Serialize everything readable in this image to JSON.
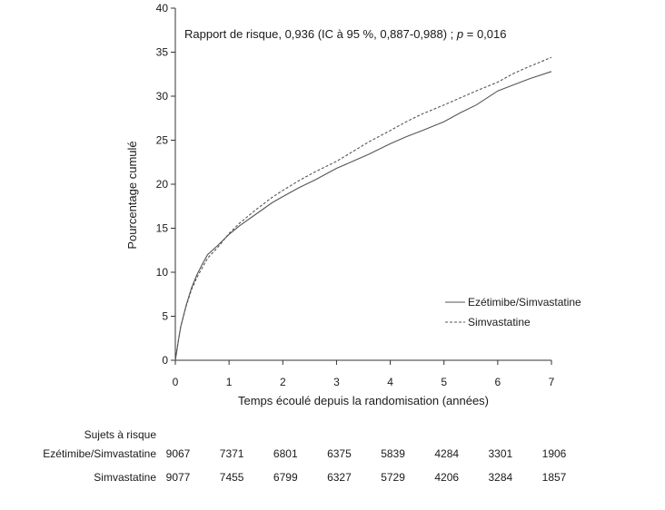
{
  "chart_data": {
    "type": "line",
    "annotation": "Rapport de risque, 0,936 (IC à 95 %, 0,887-0,988) ; p = 0,016",
    "annotation_prefix": "Rapport de risque, 0,936 (IC à 95 %, 0,887-0,988) ; ",
    "annotation_p": "p",
    "annotation_suffix": " = 0,016",
    "xlabel": "Temps écoulé depuis la randomisation (années)",
    "ylabel": "Pourcentage cumulé",
    "xlim": [
      0,
      7
    ],
    "ylim": [
      0,
      40
    ],
    "xticks": [
      0,
      1,
      2,
      3,
      4,
      5,
      6,
      7
    ],
    "yticks": [
      0,
      5,
      10,
      15,
      20,
      25,
      30,
      35,
      40
    ],
    "grid": false,
    "legend_position": "right",
    "series": [
      {
        "name": "Ezétimibe/Simvastatine",
        "style": "solid",
        "color": "#555555",
        "x": [
          0,
          0.05,
          0.1,
          0.2,
          0.3,
          0.4,
          0.5,
          0.6,
          0.8,
          1.0,
          1.2,
          1.5,
          1.8,
          2.0,
          2.3,
          2.6,
          3.0,
          3.3,
          3.6,
          4.0,
          4.3,
          4.6,
          5.0,
          5.3,
          5.6,
          6.0,
          6.3,
          6.6,
          7.0
        ],
        "y": [
          0,
          2.0,
          3.8,
          6.2,
          8.2,
          9.7,
          10.9,
          12.0,
          13.1,
          14.3,
          15.3,
          16.6,
          17.9,
          18.6,
          19.6,
          20.5,
          21.8,
          22.6,
          23.4,
          24.6,
          25.4,
          26.1,
          27.1,
          28.1,
          29.0,
          30.6,
          31.3,
          32.0,
          32.8
        ]
      },
      {
        "name": "Simvastatine",
        "style": "dashed",
        "color": "#555555",
        "x": [
          0,
          0.05,
          0.1,
          0.2,
          0.3,
          0.4,
          0.5,
          0.6,
          0.8,
          1.0,
          1.2,
          1.5,
          1.8,
          2.0,
          2.3,
          2.6,
          3.0,
          3.3,
          3.6,
          4.0,
          4.3,
          4.6,
          5.0,
          5.3,
          5.6,
          6.0,
          6.3,
          6.6,
          7.0
        ],
        "y": [
          0,
          2.0,
          3.8,
          6.1,
          8.0,
          9.4,
          10.5,
          11.6,
          12.9,
          14.4,
          15.6,
          17.1,
          18.5,
          19.3,
          20.4,
          21.4,
          22.6,
          23.7,
          24.8,
          26.1,
          27.1,
          28.0,
          29.0,
          29.8,
          30.6,
          31.6,
          32.6,
          33.4,
          34.4
        ]
      }
    ]
  },
  "risk_table": {
    "header": "Sujets à risque",
    "rows": [
      {
        "label": "Ezétimibe/Simvastatine",
        "values": [
          "9067",
          "7371",
          "6801",
          "6375",
          "5839",
          "4284",
          "3301",
          "1906"
        ]
      },
      {
        "label": "Simvastatine",
        "values": [
          "9077",
          "7455",
          "6799",
          "6327",
          "5729",
          "4206",
          "3284",
          "1857"
        ]
      }
    ]
  }
}
